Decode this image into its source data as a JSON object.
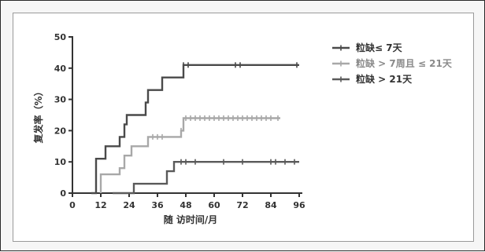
{
  "chart_data": {
    "type": "line",
    "step": true,
    "title": "",
    "xlabel": "随 访时间/月",
    "ylabel": "复发率（%）",
    "xlim": [
      0,
      96
    ],
    "ylim": [
      0,
      50
    ],
    "xticks": [
      "0",
      "12",
      "24",
      "36",
      "48",
      "60",
      "72",
      "84",
      "96"
    ],
    "yticks": [
      "0",
      "10",
      "20",
      "30",
      "40",
      "50"
    ],
    "grid": false,
    "legend_position": "top-right",
    "series": [
      {
        "name": "粒缺≤ 7天",
        "color": "#4a4a4a",
        "x": [
          8,
          10,
          10,
          14,
          14,
          20,
          20,
          22,
          22,
          23,
          23,
          31,
          31,
          32,
          32,
          38,
          38,
          47,
          47,
          96
        ],
        "y": [
          0,
          0,
          11,
          11,
          15,
          15,
          18,
          18,
          22,
          22,
          25,
          25,
          29,
          29,
          33,
          33,
          37,
          37,
          41,
          41
        ],
        "censor_x": [
          47,
          49,
          69,
          71,
          95
        ]
      },
      {
        "name": "粒缺 > 7周且 ≤ 21天",
        "color": "#a8a8a8",
        "x": [
          12,
          12,
          20,
          20,
          22,
          22,
          25,
          25,
          32,
          32,
          46,
          46,
          47,
          47,
          88
        ],
        "y": [
          0,
          6,
          6,
          8,
          8,
          12,
          12,
          15,
          15,
          18,
          18,
          20,
          20,
          24,
          24
        ],
        "censor_x": [
          34,
          36,
          38,
          46,
          48,
          50,
          52,
          54,
          56,
          58,
          60,
          62,
          64,
          66,
          68,
          70,
          72,
          74,
          76,
          78,
          80,
          82,
          84,
          87
        ]
      },
      {
        "name": "粒缺 > 21天",
        "color": "#5a5a5a",
        "x": [
          17,
          26,
          26,
          40,
          40,
          43,
          43,
          96
        ],
        "y": [
          0,
          0,
          3,
          3,
          7,
          7,
          10,
          10
        ],
        "censor_x": [
          46,
          48,
          52,
          64,
          72,
          84,
          86,
          90,
          94
        ]
      }
    ]
  }
}
